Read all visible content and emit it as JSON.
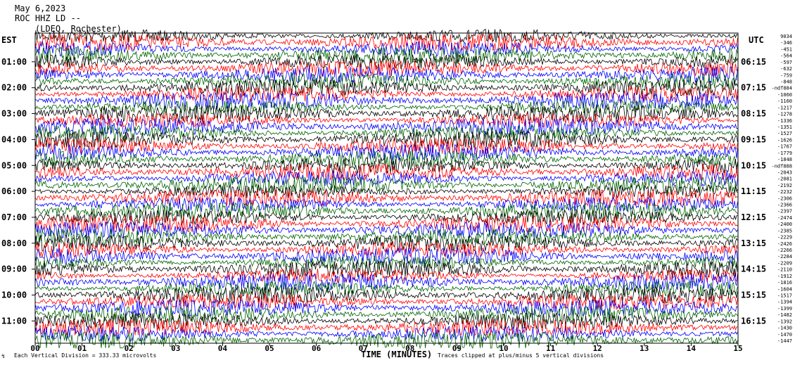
{
  "header": {
    "date": "May 6,2023",
    "station": "ROC HHZ LD --",
    "network": "(LDEO, Rochester)"
  },
  "left_axis_label": "EST",
  "right_axis_label": "UTC",
  "footer": {
    "division_note": "Each Vertical Division = 333.33 microvolts",
    "x_title": "TIME (MINUTES)",
    "clip_note": "Traces clipped at plus/minus 5 vertical divisions"
  },
  "colors": {
    "black": "#000000",
    "red": "#ff0000",
    "blue": "#0000ff",
    "green": "#006400"
  },
  "chart_data": {
    "type": "line",
    "xlabel": "TIME (MINUTES)",
    "x_ticks": [
      "00",
      "01",
      "02",
      "03",
      "04",
      "05",
      "06",
      "07",
      "08",
      "09",
      "10",
      "11",
      "12",
      "13",
      "14",
      "15"
    ],
    "xlim": [
      0,
      15
    ],
    "left_hour_labels": [
      "01:00",
      "02:00",
      "03:00",
      "04:00",
      "05:00",
      "06:00",
      "07:00",
      "08:00",
      "09:00",
      "10:00",
      "11:00"
    ],
    "right_hour_labels": [
      "06:15",
      "07:15",
      "08:15",
      "09:15",
      "10:15",
      "11:15",
      "12:15",
      "13:15",
      "14:15",
      "15:15",
      "16:15"
    ],
    "trace_color_cycle": [
      "black",
      "red",
      "blue",
      "green"
    ],
    "trace_offsets": [
      "9034",
      "-346",
      "-451",
      "-564",
      "-597",
      "-632",
      "-759",
      "-848",
      "-ndf884",
      "-1060",
      "-1160",
      "-1217",
      "-1278",
      "-1336",
      "-1351",
      "-1527",
      "-1626",
      "-1767",
      "-1779",
      "-1848",
      "-ndf888",
      "-2043",
      "-2081",
      "-2192",
      "-2232",
      "-2306",
      "-2366",
      "-2397",
      "-2474",
      "-2400",
      "-2385",
      "-2229",
      "-2426",
      "-2266",
      "-2284",
      "-2209",
      "-2110",
      "-1912",
      "-1816",
      "-1604",
      "-1517",
      "-1394",
      "-1399",
      "-1482",
      "-1392",
      "-1430",
      "-1470",
      "-1447"
    ]
  }
}
